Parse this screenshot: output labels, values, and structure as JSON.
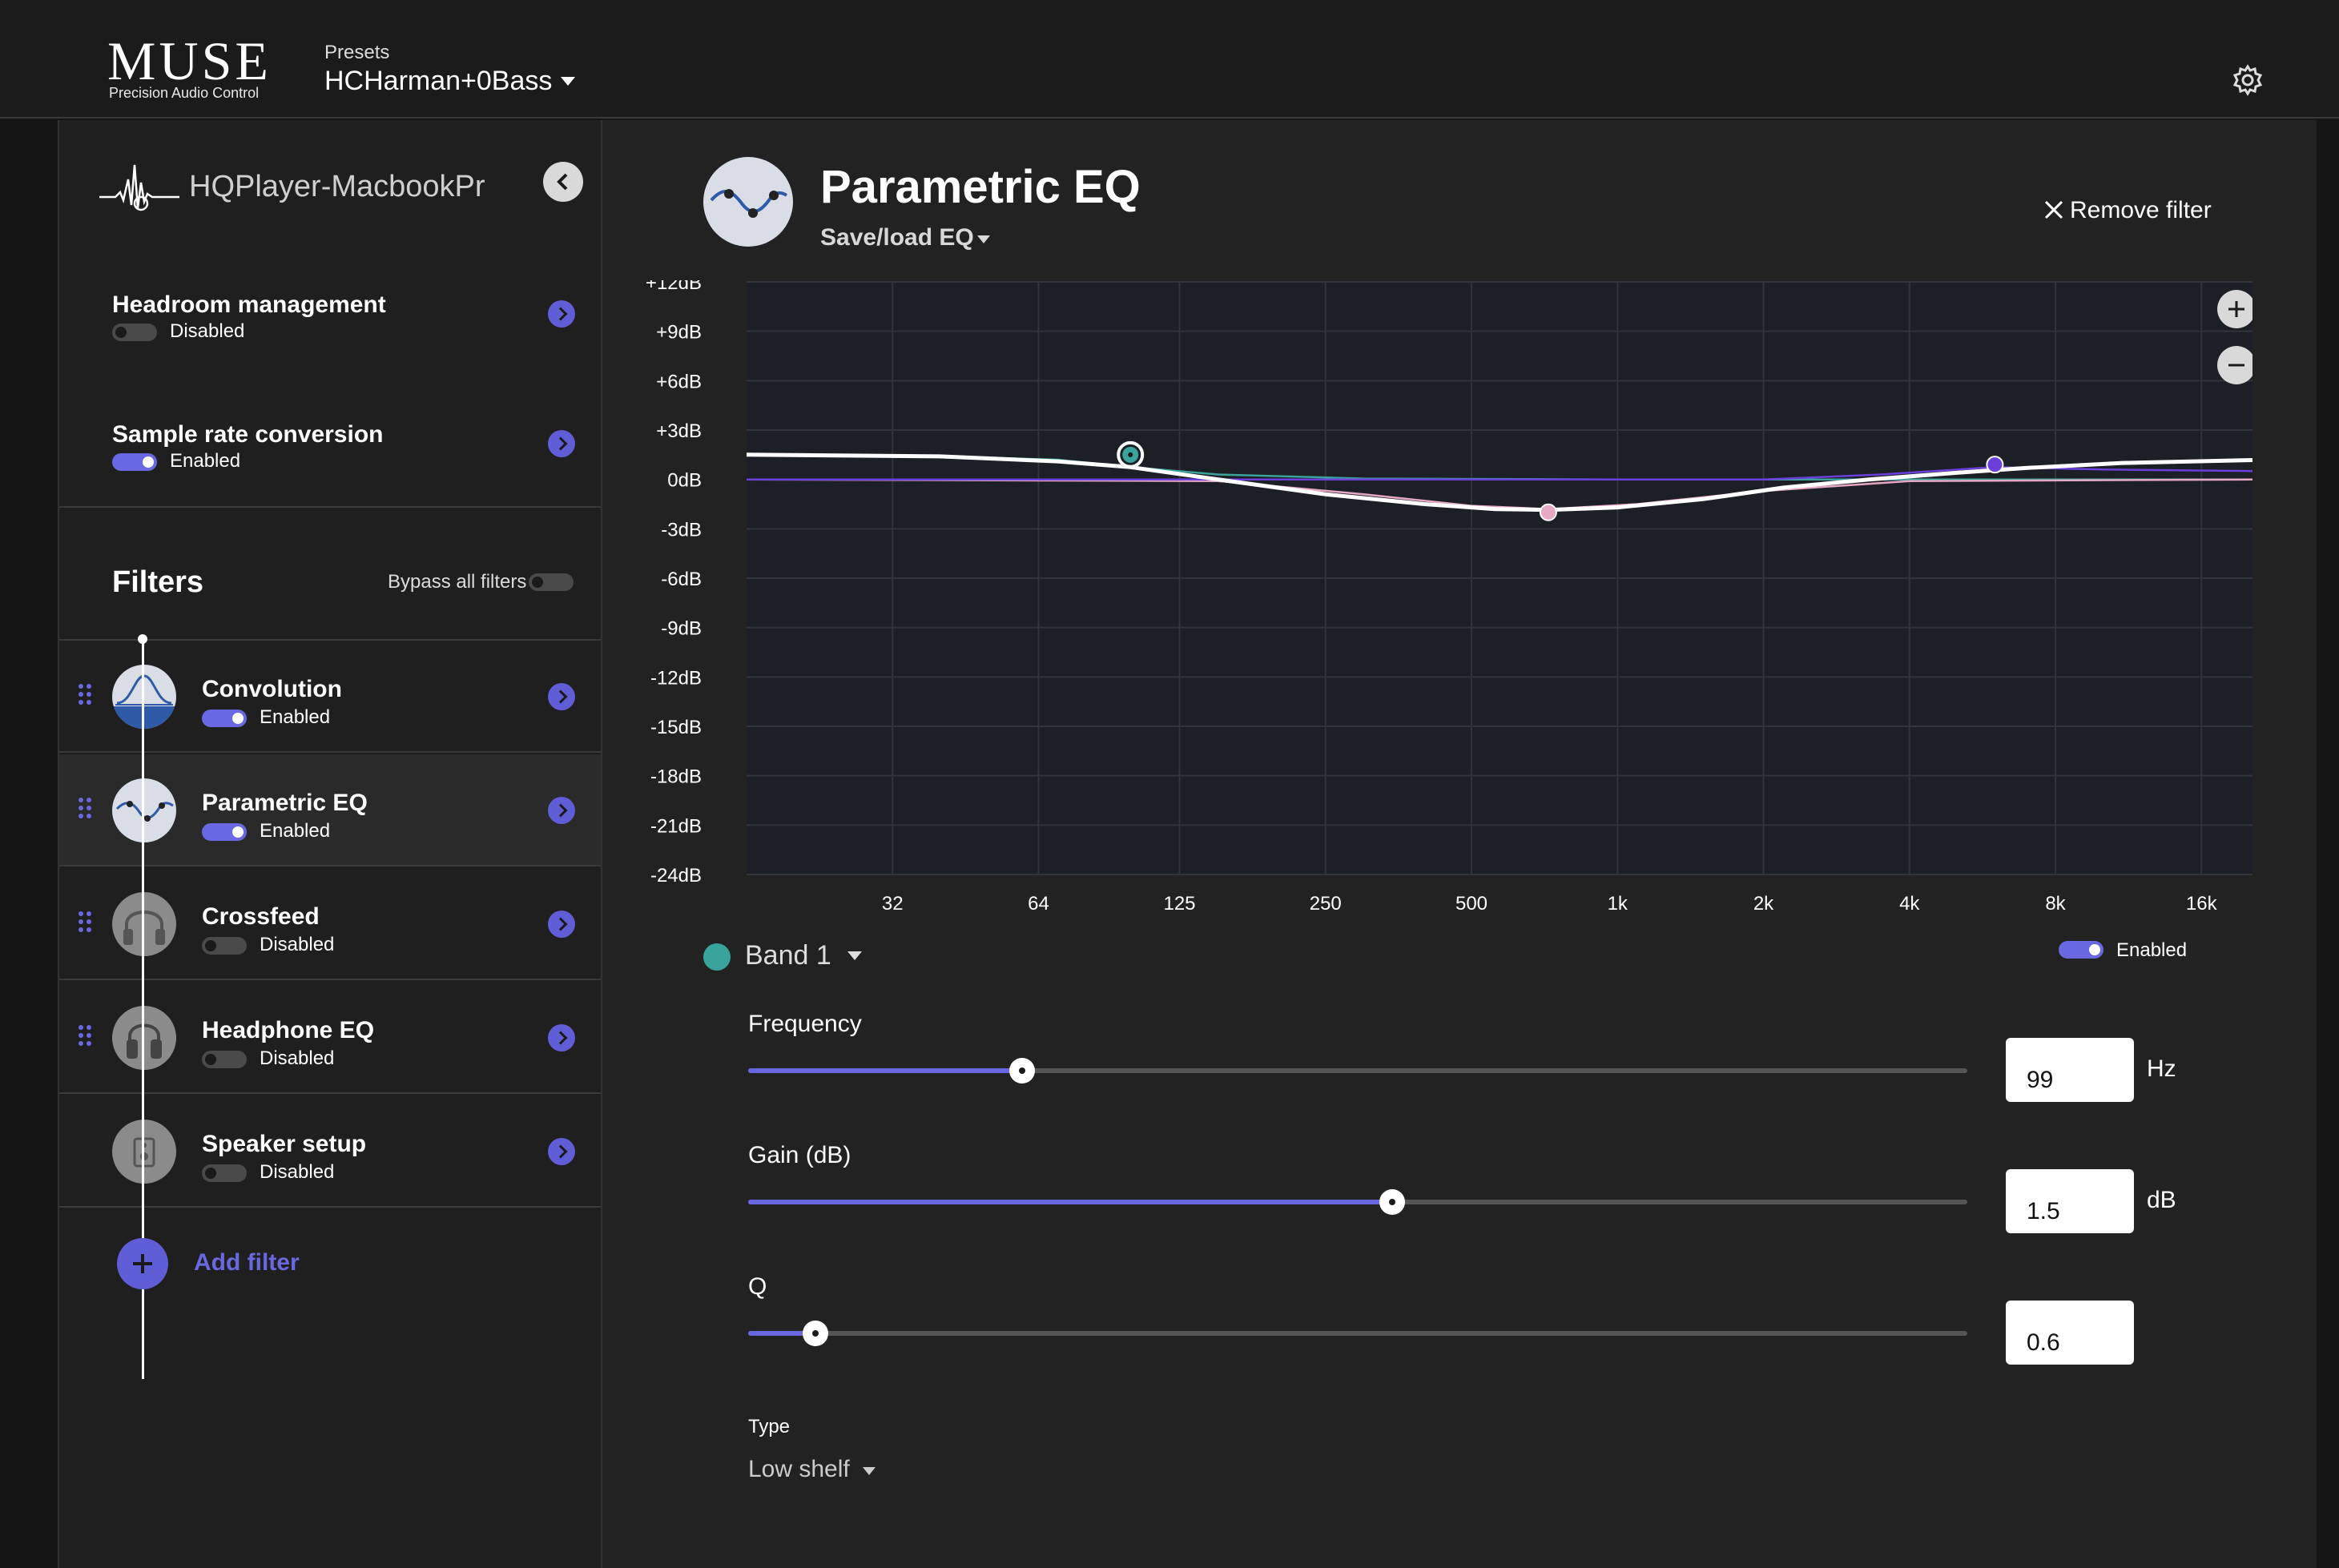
{
  "app": {
    "logo": "MUSE",
    "logo_subtitle": "Precision Audio Control",
    "presets_label": "Presets",
    "preset_value": "HCHarman+0Bass",
    "settings_icon": "gear-icon"
  },
  "sidebar": {
    "device_name": "HQPlayer-MacbookPr",
    "settings": [
      {
        "title": "Headroom management",
        "status": "Disabled",
        "enabled": false
      },
      {
        "title": "Sample rate conversion",
        "status": "Enabled",
        "enabled": true
      }
    ],
    "filters_title": "Filters",
    "bypass_label": "Bypass all filters",
    "filters": [
      {
        "name": "Convolution",
        "status": "Enabled",
        "enabled": true,
        "icon": "convolution-icon"
      },
      {
        "name": "Parametric EQ",
        "status": "Enabled",
        "enabled": true,
        "icon": "parametric-eq-icon",
        "selected": true
      },
      {
        "name": "Crossfeed",
        "status": "Disabled",
        "enabled": false,
        "icon": "headphones-icon"
      },
      {
        "name": "Headphone EQ",
        "status": "Disabled",
        "enabled": false,
        "icon": "headphone-eq-icon"
      },
      {
        "name": "Speaker setup",
        "status": "Disabled",
        "enabled": false,
        "icon": "speaker-icon"
      }
    ],
    "add_filter_label": "Add filter"
  },
  "main": {
    "title": "Parametric EQ",
    "save_load_label": "Save/load EQ",
    "remove_filter_label": "Remove filter",
    "band": {
      "label": "Band 1",
      "color": "#3aa39c",
      "enabled_label": "Enabled"
    },
    "params": {
      "frequency": {
        "label": "Frequency",
        "value": "99",
        "unit": "Hz",
        "fraction": 0.225
      },
      "gain": {
        "label": "Gain (dB)",
        "value": "1.5",
        "unit": "dB",
        "fraction": 0.528
      },
      "q": {
        "label": "Q",
        "value": "0.6",
        "unit": "",
        "fraction": 0.055
      }
    },
    "type": {
      "label": "Type",
      "value": "Low shelf"
    },
    "accent_color": "#6a68e0"
  },
  "chart_data": {
    "type": "line",
    "x_scale": "log",
    "x_ticks": [
      "32",
      "64",
      "125",
      "250",
      "500",
      "1k",
      "2k",
      "4k",
      "8k",
      "16k"
    ],
    "x_tick_values": [
      32,
      64,
      125,
      250,
      500,
      1000,
      2000,
      4000,
      8000,
      16000
    ],
    "xlim": [
      16,
      22000
    ],
    "y_ticks": [
      "+12dB",
      "+9dB",
      "+6dB",
      "+3dB",
      "0dB",
      "-3dB",
      "-6dB",
      "-9dB",
      "-12dB",
      "-15dB",
      "-18dB",
      "-21dB",
      "-24dB"
    ],
    "ylim": [
      -24,
      12
    ],
    "grid": true,
    "gain_slider_db": 6,
    "series": [
      {
        "color": "#ffffff",
        "values": [
          [
            16,
            1.5
          ],
          [
            40,
            1.4
          ],
          [
            70,
            1.1
          ],
          [
            99,
            0.75
          ],
          [
            150,
            0.0
          ],
          [
            250,
            -0.9
          ],
          [
            400,
            -1.5
          ],
          [
            560,
            -1.8
          ],
          [
            720,
            -1.85
          ],
          [
            1000,
            -1.7
          ],
          [
            1500,
            -1.2
          ],
          [
            2200,
            -0.5
          ],
          [
            3300,
            0.0
          ],
          [
            5000,
            0.4
          ],
          [
            7000,
            0.7
          ],
          [
            11000,
            1.0
          ],
          [
            22000,
            1.2
          ]
        ]
      },
      {
        "color": "#3aa39c",
        "values": [
          [
            16,
            1.5
          ],
          [
            40,
            1.4
          ],
          [
            70,
            1.2
          ],
          [
            99,
            0.75
          ],
          [
            150,
            0.3
          ],
          [
            300,
            0.05
          ],
          [
            1000,
            0.0
          ],
          [
            22000,
            0.0
          ]
        ]
      },
      {
        "color": "#e7a8c4",
        "values": [
          [
            16,
            0.0
          ],
          [
            150,
            -0.1
          ],
          [
            300,
            -0.9
          ],
          [
            500,
            -1.6
          ],
          [
            720,
            -1.8
          ],
          [
            1100,
            -1.5
          ],
          [
            2000,
            -0.7
          ],
          [
            4000,
            -0.1
          ],
          [
            22000,
            0.0
          ]
        ]
      },
      {
        "color": "#6b3fd9",
        "values": [
          [
            16,
            0.0
          ],
          [
            2000,
            0.0
          ],
          [
            3500,
            0.3
          ],
          [
            6000,
            0.75
          ],
          [
            10000,
            0.6
          ],
          [
            22000,
            0.5
          ]
        ]
      }
    ],
    "band_points": [
      {
        "freq": 99,
        "gain": 1.5,
        "color": "#3aa39c",
        "selected": true
      },
      {
        "freq": 720,
        "gain": -2.0,
        "color": "#e7a8c4"
      },
      {
        "freq": 6000,
        "gain": 0.9,
        "color": "#6b3fd9"
      }
    ]
  }
}
